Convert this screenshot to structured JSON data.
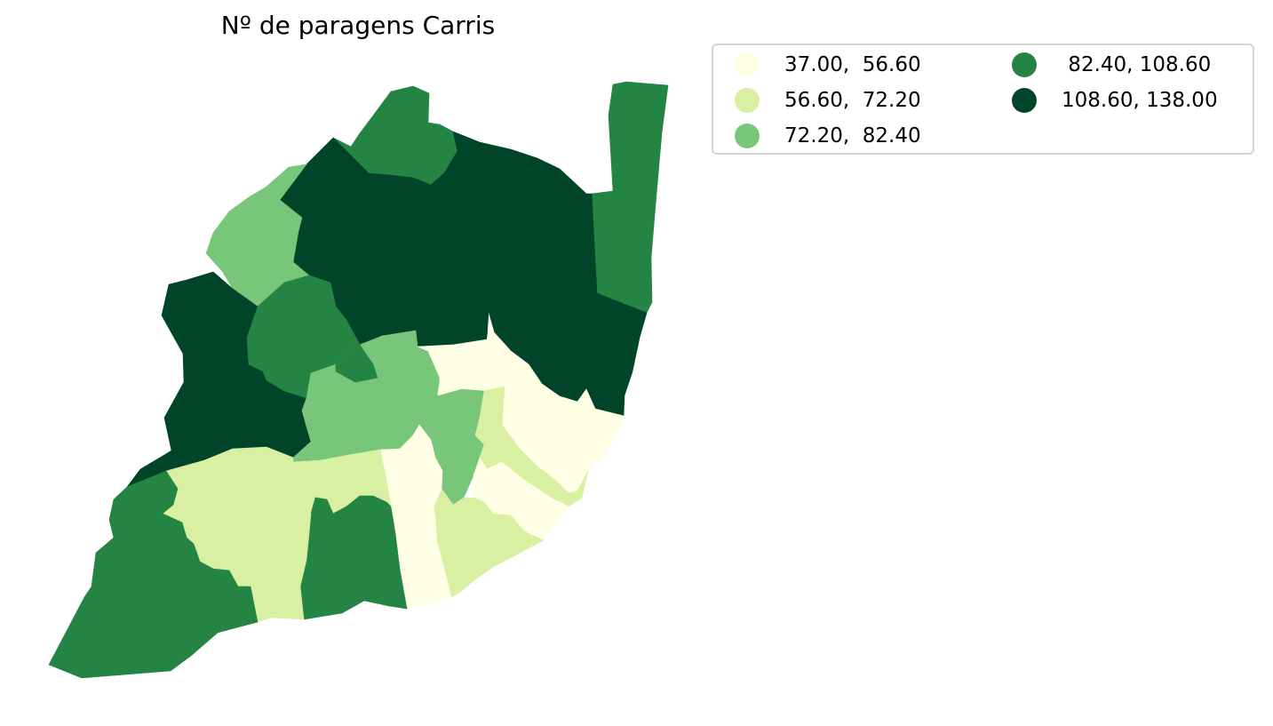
{
  "map": {
    "title": "Nº de paragens Carris",
    "legend": {
      "columns": 2,
      "items": [
        {
          "label": "37.00,  56.60",
          "color": "#ffffe5"
        },
        {
          "label": "56.60,  72.20",
          "color": "#d9f0a3"
        },
        {
          "label": "72.20,  82.40",
          "color": "#78c679"
        },
        {
          "label": " 82.40, 108.60",
          "color": "#238443"
        },
        {
          "label": "108.60, 138.00",
          "color": "#004529"
        }
      ]
    },
    "classes": {
      "c1": "#ffffe5",
      "c2": "#d9f0a3",
      "c3": "#78c679",
      "c4": "#238443",
      "c5": "#004529"
    }
  }
}
